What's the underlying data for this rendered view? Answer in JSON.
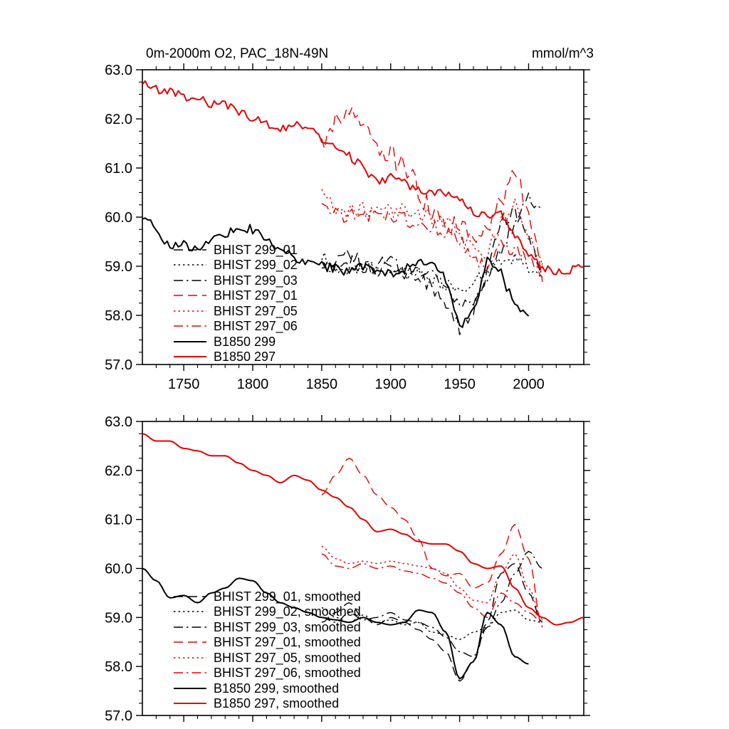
{
  "chart_data": {
    "type": "line",
    "title": "0m-2000m O2, PAC_18N-49N",
    "unit_label": "mmol/m^3",
    "xlim": [
      1720,
      2040
    ],
    "ylim": [
      57.0,
      63.0
    ],
    "xticks_major": [
      1750,
      1800,
      1850,
      1900,
      1950,
      2000
    ],
    "xtick_minor_step": 10,
    "yticks_major": [
      57.0,
      58.0,
      59.0,
      60.0,
      61.0,
      62.0,
      63.0
    ],
    "ytick_minor_step": 0.25,
    "grid": "off",
    "legend_position": "inside-lower-left",
    "colors": {
      "black": "#000000",
      "red": "#e60000"
    },
    "panels": [
      {
        "id": "raw",
        "noisy": true,
        "legend_suffix": "",
        "show_x_labels": true
      },
      {
        "id": "smoothed",
        "noisy": false,
        "legend_suffix": ", smoothed",
        "show_x_labels": false
      }
    ],
    "series": [
      {
        "name": "BHIST 299_01",
        "color": "black",
        "style": "dashed",
        "x0": 1850,
        "dx": 10,
        "noise": 0.16,
        "values": [
          58.9,
          59.1,
          59.3,
          59.0,
          58.85,
          59.0,
          58.9,
          58.75,
          58.55,
          58.3,
          57.7,
          58.1,
          58.9,
          59.9,
          60.1,
          59.5,
          58.9
        ]
      },
      {
        "name": "BHIST 299_02",
        "color": "black",
        "style": "dotted",
        "x0": 1850,
        "dx": 10,
        "noise": 0.14,
        "values": [
          59.2,
          59.0,
          58.9,
          59.05,
          58.9,
          58.95,
          58.85,
          58.9,
          58.7,
          58.65,
          58.55,
          58.7,
          58.8,
          59.1,
          59.15,
          58.95,
          58.9
        ]
      },
      {
        "name": "BHIST 299_03",
        "color": "black",
        "style": "dashdot",
        "x0": 1850,
        "dx": 10,
        "noise": 0.15,
        "values": [
          59.0,
          58.9,
          59.1,
          58.95,
          59.0,
          59.1,
          58.95,
          58.9,
          58.8,
          58.6,
          58.3,
          58.2,
          58.8,
          59.3,
          59.9,
          60.35,
          60.0
        ]
      },
      {
        "name": "BHIST 297_01",
        "color": "red",
        "style": "dashed",
        "x0": 1850,
        "dx": 10,
        "noise": 0.22,
        "values": [
          61.5,
          61.9,
          62.25,
          61.9,
          61.5,
          61.25,
          61.0,
          60.6,
          60.0,
          59.85,
          59.9,
          59.6,
          59.7,
          60.3,
          60.9,
          60.2,
          58.8
        ]
      },
      {
        "name": "BHIST 297_05",
        "color": "red",
        "style": "dotted",
        "x0": 1850,
        "dx": 10,
        "noise": 0.16,
        "values": [
          60.45,
          60.2,
          60.1,
          60.15,
          60.1,
          60.15,
          60.1,
          60.05,
          60.0,
          59.9,
          59.6,
          59.35,
          59.3,
          59.9,
          60.3,
          59.6,
          58.95
        ]
      },
      {
        "name": "BHIST 297_06",
        "color": "red",
        "style": "dashdot",
        "x0": 1850,
        "dx": 10,
        "noise": 0.15,
        "values": [
          60.3,
          60.05,
          60.0,
          60.1,
          60.0,
          60.05,
          59.95,
          59.9,
          59.8,
          59.7,
          59.5,
          59.2,
          59.0,
          59.5,
          59.3,
          59.1,
          58.9
        ]
      },
      {
        "name": "B1850 299",
        "color": "black",
        "style": "solid",
        "x0": 1720,
        "dx": 10,
        "noise": 0.1,
        "values": [
          60.0,
          59.75,
          59.4,
          59.45,
          59.3,
          59.5,
          59.6,
          59.8,
          59.75,
          59.5,
          59.3,
          59.2,
          59.1,
          59.0,
          58.95,
          58.9,
          59.0,
          58.9,
          58.85,
          58.9,
          59.15,
          59.1,
          58.7,
          57.75,
          58.1,
          59.1,
          58.85,
          58.2,
          58.05
        ]
      },
      {
        "name": "B1850 297",
        "color": "red",
        "style": "solid",
        "x0": 1720,
        "dx": 10,
        "noise": 0.09,
        "values": [
          62.75,
          62.6,
          62.6,
          62.45,
          62.4,
          62.3,
          62.3,
          62.15,
          62.0,
          61.9,
          61.75,
          61.9,
          61.8,
          61.6,
          61.45,
          61.25,
          61.0,
          60.75,
          60.8,
          60.7,
          60.55,
          60.5,
          60.5,
          60.35,
          60.1,
          60.0,
          60.05,
          59.6,
          59.2,
          59.0,
          58.85,
          58.9,
          59.0
        ]
      }
    ]
  }
}
